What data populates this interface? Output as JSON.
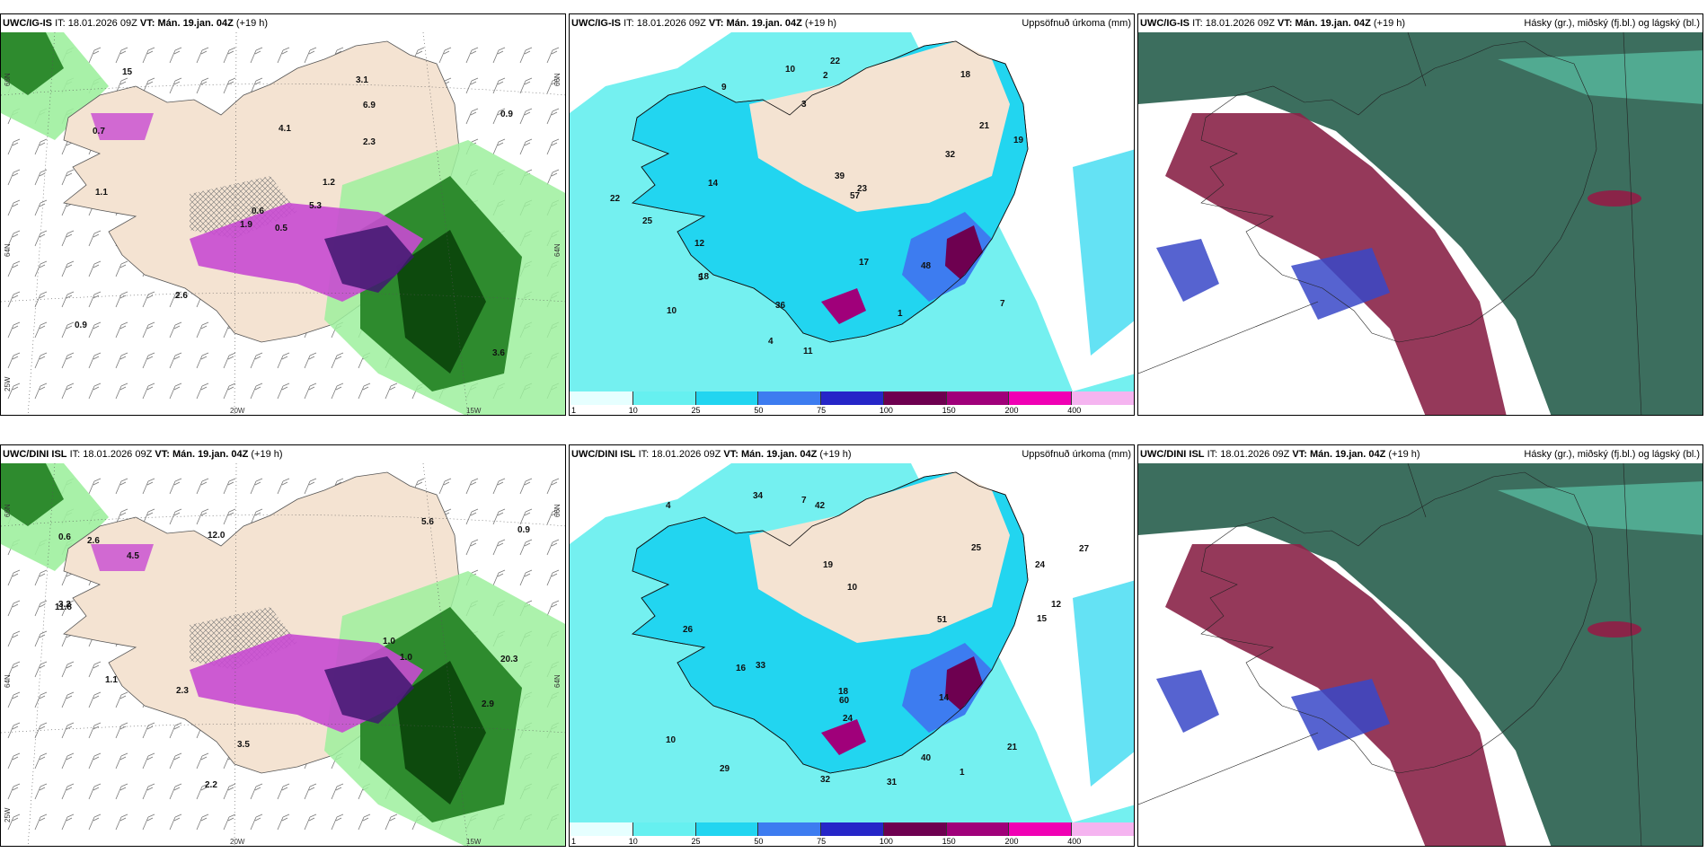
{
  "panels": [
    {
      "model": "UWC/IG-IS",
      "it_label": "IT:",
      "it_value": "18.01.2026 09Z",
      "vt_label": "VT:",
      "vt_value": "Mán. 19.jan. 04Z",
      "lead": "(+19 h)",
      "title_right": "",
      "axis_labels": [
        "66N",
        "64N",
        "25W",
        "20W",
        "15W",
        "66N",
        "64N"
      ],
      "map_numbers": [
        "0.5",
        "0.7",
        "0.6",
        "0.9",
        "1.2",
        "2.6",
        "3.1",
        "4.1",
        "6.9",
        "5.3",
        "15",
        "3.6",
        "1.1",
        "0.9",
        "1.9",
        "2.3"
      ]
    },
    {
      "model": "UWC/IG-IS",
      "it_label": "IT:",
      "it_value": "18.01.2026 09Z",
      "vt_label": "VT:",
      "vt_value": "Mán. 19.jan. 04Z",
      "lead": "(+19 h)",
      "title_right": "Uppsöfnuð úrkoma (mm)",
      "axis_labels": [],
      "map_numbers": [
        "10",
        "18",
        "9",
        "21",
        "17",
        "14",
        "12",
        "18",
        "19",
        "32",
        "25",
        "22",
        "48",
        "57",
        "11",
        "10",
        "7",
        "22",
        "5",
        "4",
        "1",
        "2",
        "3",
        "23",
        "39",
        "36"
      ],
      "colorbar_ticks": [
        "1",
        "10",
        "25",
        "50",
        "75",
        "100",
        "150",
        "200",
        "400"
      ]
    },
    {
      "model": "UWC/IG-IS",
      "it_label": "IT:",
      "it_value": "18.01.2026 09Z",
      "vt_label": "VT:",
      "vt_value": "Mán. 19.jan. 04Z",
      "lead": "(+19 h)",
      "title_right": "Hásky (gr.), miðský (fj.bl.) og lágský (bl.)",
      "axis_labels": [],
      "map_numbers": []
    },
    {
      "model": "UWC/DINI ISL",
      "it_label": "IT:",
      "it_value": "18.01.2026 09Z",
      "vt_label": "VT:",
      "vt_value": "Mán. 19.jan. 04Z",
      "lead": "(+19 h)",
      "title_right": "",
      "axis_labels": [
        "66N",
        "64N",
        "25W",
        "20W",
        "15W",
        "66N",
        "64N"
      ],
      "map_numbers": [
        "0.6",
        "1.1",
        "2.2",
        "1.0",
        "2.9",
        "3.2",
        "11.8",
        "5.6",
        "20.3",
        "12.0",
        "2.6",
        "3.5",
        "0.9",
        "4.5",
        "1.0",
        "2.3"
      ]
    },
    {
      "model": "UWC/DINI ISL",
      "it_label": "IT:",
      "it_value": "18.01.2026 09Z",
      "vt_label": "VT:",
      "vt_value": "Mán. 19.jan. 04Z",
      "lead": "(+19 h)",
      "title_right": "Uppsöfnuð úrkoma (mm)",
      "axis_labels": [],
      "map_numbers": [
        "26",
        "34",
        "10",
        "25",
        "24",
        "27",
        "19",
        "24",
        "32",
        "31",
        "21",
        "29",
        "18",
        "40",
        "51",
        "60",
        "14",
        "10",
        "12",
        "16",
        "15",
        "4",
        "1",
        "33",
        "42",
        "7"
      ],
      "colorbar_ticks": [
        "1",
        "10",
        "25",
        "50",
        "75",
        "100",
        "150",
        "200",
        "400"
      ]
    },
    {
      "model": "UWC/DINI ISL",
      "it_label": "IT:",
      "it_value": "18.01.2026 09Z",
      "vt_label": "VT:",
      "vt_value": "Mán. 19.jan. 04Z",
      "lead": "(+19 h)",
      "title_right": "Hásky (gr.), miðský (fj.bl.) og lágský (bl.)",
      "axis_labels": [],
      "map_numbers": []
    }
  ],
  "colorbar_colors": [
    "#e6ffff",
    "#66f0f0",
    "#22d5f0",
    "#3d7cf0",
    "#2626c8",
    "#6e0050",
    "#a0007a",
    "#f000b4",
    "#f5b4f0"
  ],
  "colors": {
    "land": "#f4e3d2",
    "precip_light": "#9ef09e",
    "precip_mid": "#2e8b2e",
    "precip_heavy": "#0d4a0d",
    "snow_mix": "#c84ad2",
    "snow_heavy": "#401870",
    "sea_precip": "#74f0f0",
    "cloud_high": "#3c6e5e",
    "cloud_mid": "#8a2448",
    "cloud_low": "#3848c8"
  }
}
